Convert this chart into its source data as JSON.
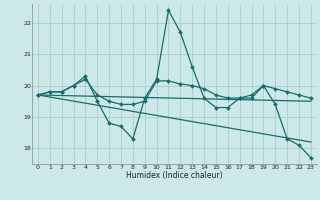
{
  "xlabel": "Humidex (Indice chaleur)",
  "background_color": "#cce8e8",
  "grid_color": "#aacccc",
  "line_color": "#1a6b6b",
  "xlim": [
    -0.5,
    23.5
  ],
  "ylim": [
    17.5,
    22.6
  ],
  "yticks": [
    18,
    19,
    20,
    21,
    22
  ],
  "xticks": [
    0,
    1,
    2,
    3,
    4,
    5,
    6,
    7,
    8,
    9,
    10,
    11,
    12,
    13,
    14,
    15,
    16,
    17,
    18,
    19,
    20,
    21,
    22,
    23
  ],
  "series": [
    {
      "x": [
        0,
        1,
        2,
        3,
        4,
        5,
        6,
        7,
        8,
        9,
        10,
        11,
        12,
        13,
        14,
        15,
        16,
        17,
        18,
        19,
        20,
        21,
        22,
        23
      ],
      "y": [
        19.7,
        19.8,
        19.8,
        20.0,
        20.3,
        19.5,
        18.8,
        18.7,
        18.3,
        19.6,
        20.2,
        22.4,
        21.7,
        20.6,
        19.6,
        19.3,
        19.3,
        19.6,
        19.7,
        20.0,
        19.4,
        18.3,
        18.1,
        17.7
      ],
      "marker": "D",
      "markersize": 2.0,
      "linewidth": 0.9,
      "has_marker": true
    },
    {
      "x": [
        0,
        1,
        2,
        3,
        4,
        5,
        6,
        7,
        8,
        9,
        10,
        11,
        12,
        13,
        14,
        15,
        16,
        17,
        18,
        19,
        20,
        21,
        22,
        23
      ],
      "y": [
        19.7,
        19.8,
        19.8,
        20.0,
        20.2,
        19.7,
        19.5,
        19.4,
        19.4,
        19.5,
        20.15,
        20.15,
        20.05,
        20.0,
        19.9,
        19.7,
        19.6,
        19.6,
        19.6,
        20.0,
        19.9,
        19.8,
        19.7,
        19.6
      ],
      "marker": "D",
      "markersize": 2.0,
      "linewidth": 0.9,
      "has_marker": true
    },
    {
      "x": [
        0,
        23
      ],
      "y": [
        19.7,
        18.2
      ],
      "marker": null,
      "markersize": 0,
      "linewidth": 0.9,
      "has_marker": false
    },
    {
      "x": [
        0,
        23
      ],
      "y": [
        19.7,
        19.5
      ],
      "marker": null,
      "markersize": 0,
      "linewidth": 0.9,
      "has_marker": false
    }
  ]
}
